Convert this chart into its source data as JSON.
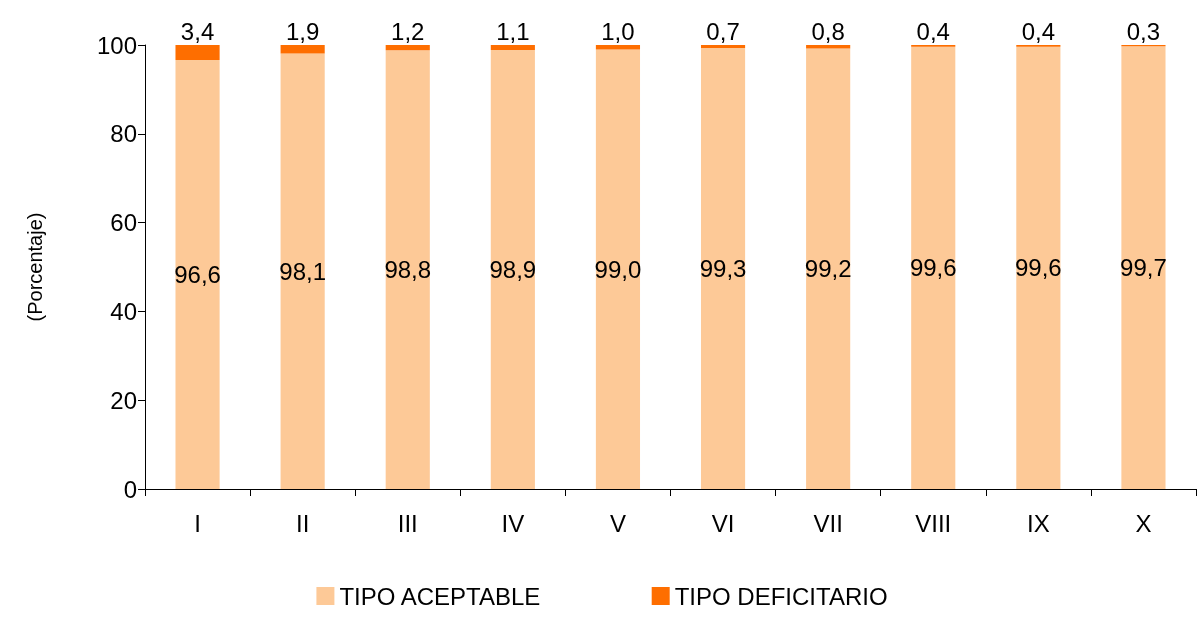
{
  "chart_data": {
    "type": "bar",
    "stacked": true,
    "ylabel": "(Porcentaje)",
    "categories": [
      "I",
      "II",
      "III",
      "IV",
      "V",
      "VI",
      "VII",
      "VIII",
      "IX",
      "X"
    ],
    "series": [
      {
        "name": "TIPO ACEPTABLE",
        "color": "#fdc997",
        "values": [
          96.6,
          98.1,
          98.8,
          98.9,
          99.0,
          99.3,
          99.2,
          99.6,
          99.6,
          99.7
        ],
        "value_labels": [
          "96,6",
          "98,1",
          "98,8",
          "98,9",
          "99,0",
          "99,3",
          "99,2",
          "99,6",
          "99,6",
          "99,7"
        ]
      },
      {
        "name": "TIPO DEFICITARIO",
        "color": "#fe6e00",
        "values": [
          3.4,
          1.9,
          1.2,
          1.1,
          1.0,
          0.7,
          0.8,
          0.4,
          0.4,
          0.3
        ],
        "value_labels": [
          "3,4",
          "1,9",
          "1,2",
          "1,1",
          "1,0",
          "0,7",
          "0,8",
          "0,4",
          "0,4",
          "0,3"
        ]
      }
    ],
    "ylim": [
      0,
      100
    ],
    "yticks": [
      0,
      20,
      40,
      60,
      80,
      100
    ],
    "grid": false,
    "legend": "bottom"
  }
}
